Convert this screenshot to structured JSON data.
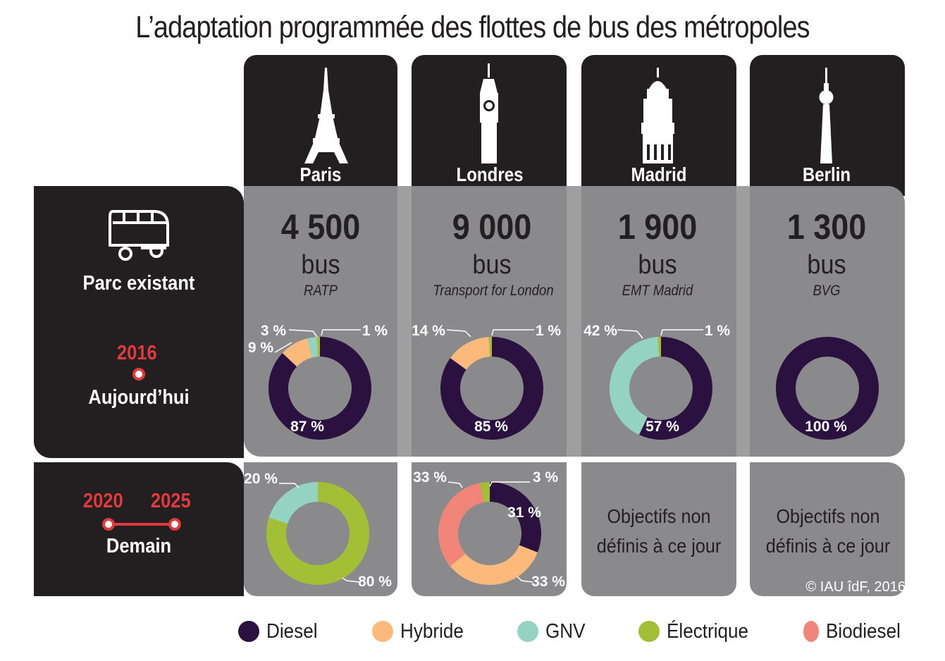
{
  "title": "L’adaptation programmée des flottes de bus des métropoles",
  "row_labels": {
    "existing": "Parc existant",
    "year_now": "2016",
    "now": "Aujourd’hui",
    "year_from": "2020",
    "year_to": "2025",
    "future": "Demain"
  },
  "unit_label": "bus",
  "no_target_text": [
    "Objectifs non",
    "définis à ce jour"
  ],
  "copyright": "© IAU îdF, 2016",
  "colors": {
    "Diesel": "#2a1140",
    "Hybride": "#fbb97c",
    "GNV": "#94d3c1",
    "Électrique": "#a3bf36",
    "Biodiesel": "#f2857a",
    "dark": "#231f20",
    "grey": "#8a8a8c"
  },
  "icons": {
    "Paris": "eiffel-tower-icon",
    "Londres": "big-ben-icon",
    "Madrid": "metropolis-building-icon",
    "Berlin": "tv-tower-icon",
    "existing": "bus-icon"
  },
  "chart_data": {
    "type": "donut",
    "legend": [
      "Diesel",
      "Hybride",
      "GNV",
      "Électrique",
      "Biodiesel"
    ],
    "legend_position": "bottom",
    "cities": [
      {
        "name": "Paris",
        "count": "4 500",
        "operator": "RATP",
        "today": [
          {
            "category": "Diesel",
            "value": 87,
            "label": "87 %"
          },
          {
            "category": "Hybride",
            "value": 9,
            "label": "9 %"
          },
          {
            "category": "GNV",
            "value": 3,
            "label": "3 %"
          },
          {
            "category": "Électrique",
            "value": 1,
            "label": "1 %"
          }
        ],
        "future": [
          {
            "category": "Électrique",
            "value": 80,
            "label": "80 %"
          },
          {
            "category": "GNV",
            "value": 20,
            "label": "20 %"
          }
        ]
      },
      {
        "name": "Londres",
        "count": "9 000",
        "operator": "Transport for London",
        "today": [
          {
            "category": "Diesel",
            "value": 85,
            "label": "85 %"
          },
          {
            "category": "Hybride",
            "value": 14,
            "label": "14 %"
          },
          {
            "category": "Électrique",
            "value": 1,
            "label": "1 %"
          }
        ],
        "future": [
          {
            "category": "Diesel",
            "value": 31,
            "label": "31 %"
          },
          {
            "category": "Hybride",
            "value": 33,
            "label": "33 %"
          },
          {
            "category": "Biodiesel",
            "value": 33,
            "label": "33 %"
          },
          {
            "category": "Électrique",
            "value": 3,
            "label": "3 %"
          }
        ]
      },
      {
        "name": "Madrid",
        "count": "1 900",
        "operator": "EMT Madrid",
        "today": [
          {
            "category": "Diesel",
            "value": 57,
            "label": "57 %"
          },
          {
            "category": "GNV",
            "value": 42,
            "label": "42 %"
          },
          {
            "category": "Électrique",
            "value": 1,
            "label": "1 %"
          }
        ],
        "future": null
      },
      {
        "name": "Berlin",
        "count": "1 300",
        "operator": "BVG",
        "today": [
          {
            "category": "Diesel",
            "value": 100,
            "label": "100 %"
          }
        ],
        "future": null
      }
    ]
  }
}
